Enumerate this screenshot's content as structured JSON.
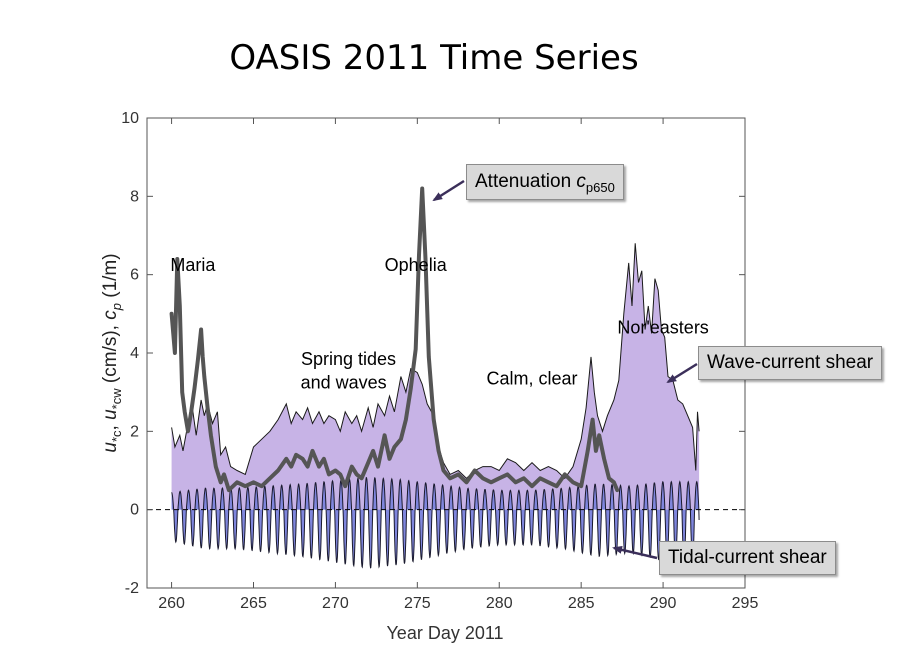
{
  "title": "OASIS 2011 Time Series",
  "colors": {
    "wave_fill": "#c7b3e6",
    "tidal_fill": "#7f86dd",
    "line": "#555555",
    "callout_bg": "#d9d9d9",
    "arrow": "#3b2f5a"
  },
  "callouts": {
    "attenuation": {
      "text": "Attenuation ",
      "sym": "c",
      "sub": "p650"
    },
    "wave_shear": "Wave-current shear",
    "tidal_shear": "Tidal-current shear"
  },
  "chart_data": {
    "type": "area",
    "xlabel": "Year Day 2011",
    "ylabel": "u*c, u*cw (cm/s), cp (1/m)",
    "xlim": [
      258.5,
      295
    ],
    "ylim": [
      -2,
      10
    ],
    "xticks": [
      260,
      265,
      270,
      275,
      280,
      285,
      290,
      295
    ],
    "yticks": [
      -2,
      0,
      2,
      4,
      6,
      8,
      10
    ],
    "zero_line": "dashed",
    "annotations": [
      {
        "text": "Maria",
        "x": 261.3,
        "y": 6.1
      },
      {
        "text": "Ophelia",
        "x": 274.9,
        "y": 6.1
      },
      {
        "text": "Spring tides",
        "x": 270.8,
        "y": 3.7
      },
      {
        "text": "and waves",
        "x": 270.5,
        "y": 3.1
      },
      {
        "text": "Calm, clear",
        "x": 282.0,
        "y": 3.2
      },
      {
        "text": "Nor'easters",
        "x": 290.0,
        "y": 4.5
      }
    ],
    "series": [
      {
        "name": "Wave-current shear",
        "kind": "filled-envelope",
        "x": [
          260.0,
          260.2,
          260.5,
          260.7,
          261.0,
          261.3,
          261.5,
          261.8,
          262.0,
          262.2,
          262.5,
          262.8,
          263.0,
          263.3,
          263.6,
          264.0,
          264.5,
          265.0,
          265.5,
          266.0,
          266.5,
          267.0,
          267.3,
          267.6,
          268.0,
          268.3,
          268.6,
          269.0,
          269.3,
          269.6,
          270.0,
          270.3,
          270.6,
          271.0,
          271.3,
          271.6,
          272.0,
          272.3,
          272.6,
          273.0,
          273.3,
          273.6,
          274.0,
          274.3,
          274.6,
          275.0,
          275.3,
          275.6,
          276.0,
          276.3,
          276.6,
          277.0,
          277.5,
          278.0,
          278.5,
          279.0,
          279.5,
          280.0,
          280.5,
          281.0,
          281.5,
          282.0,
          282.5,
          283.0,
          283.5,
          284.0,
          284.5,
          285.0,
          285.3,
          285.6,
          285.8,
          286.0,
          286.3,
          286.6,
          287.0,
          287.3,
          287.6,
          287.9,
          288.1,
          288.3,
          288.5,
          288.7,
          288.9,
          289.1,
          289.3,
          289.5,
          289.7,
          289.9,
          290.1,
          290.3,
          290.6,
          290.9,
          291.2,
          291.5,
          291.8,
          292.0,
          292.1,
          292.2
        ],
        "y": [
          2.1,
          1.6,
          1.9,
          1.5,
          2.2,
          2.5,
          1.9,
          2.8,
          2.4,
          2.7,
          2.2,
          2.5,
          1.4,
          1.6,
          1.1,
          1.0,
          0.9,
          1.6,
          1.8,
          2.0,
          2.3,
          2.7,
          2.2,
          2.5,
          2.3,
          2.6,
          2.2,
          2.5,
          2.2,
          2.4,
          2.3,
          2.0,
          2.5,
          2.2,
          2.4,
          2.0,
          2.6,
          2.1,
          2.7,
          2.4,
          2.9,
          2.5,
          3.4,
          3.0,
          3.6,
          3.5,
          3.2,
          2.7,
          2.4,
          1.6,
          1.2,
          0.9,
          1.0,
          0.8,
          1.0,
          1.1,
          1.1,
          1.0,
          1.3,
          1.2,
          1.0,
          1.2,
          1.0,
          1.1,
          1.0,
          0.8,
          1.1,
          1.8,
          2.6,
          3.9,
          3.0,
          2.4,
          2.0,
          2.4,
          2.8,
          3.3,
          5.0,
          6.3,
          5.2,
          6.8,
          5.8,
          6.1,
          4.6,
          5.2,
          4.5,
          5.9,
          5.6,
          4.6,
          4.4,
          3.4,
          3.3,
          2.8,
          2.7,
          2.4,
          2.1,
          1.0,
          2.5,
          2.0
        ]
      },
      {
        "name": "Tidal-current shear",
        "kind": "oscillating-fill",
        "x_start": 260.0,
        "x_end": 292.2,
        "period_days": 0.517,
        "peak_amplitude": [
          [
            260,
            0.8
          ],
          [
            262,
            1.0
          ],
          [
            264,
            1.0
          ],
          [
            266,
            1.1
          ],
          [
            268,
            1.2
          ],
          [
            270,
            1.35
          ],
          [
            272,
            1.5
          ],
          [
            274,
            1.4
          ],
          [
            276,
            1.2
          ],
          [
            278,
            1.0
          ],
          [
            280,
            0.9
          ],
          [
            282,
            0.9
          ],
          [
            284,
            1.0
          ],
          [
            286,
            1.2
          ],
          [
            288,
            1.1
          ],
          [
            290,
            1.3
          ],
          [
            292,
            1.3
          ]
        ]
      },
      {
        "name": "Attenuation cp650",
        "kind": "line",
        "x": [
          260.0,
          260.2,
          260.35,
          260.5,
          260.65,
          260.8,
          261.0,
          261.2,
          261.4,
          261.6,
          261.8,
          261.9,
          262.0,
          262.2,
          262.4,
          262.7,
          263.0,
          263.2,
          263.5,
          264.0,
          264.5,
          265.0,
          265.5,
          266.0,
          266.5,
          267.0,
          267.3,
          267.6,
          268.0,
          268.3,
          268.6,
          269.0,
          269.3,
          269.6,
          270.0,
          270.3,
          270.6,
          271.0,
          271.3,
          271.6,
          272.0,
          272.3,
          272.6,
          273.0,
          273.3,
          273.6,
          274.0,
          274.3,
          274.6,
          274.9,
          275.1,
          275.3,
          275.5,
          275.7,
          276.0,
          276.3,
          276.6,
          277.0,
          277.5,
          278.0,
          278.5,
          279.0,
          279.5,
          280.0,
          280.5,
          281.0,
          281.5,
          282.0,
          282.5,
          283.0,
          283.5,
          284.0,
          284.5,
          285.0,
          285.4,
          285.7,
          285.9,
          286.1,
          286.4,
          286.7,
          287.0,
          287.2
        ],
        "y": [
          5.0,
          4.0,
          6.4,
          5.2,
          3.0,
          2.5,
          2.0,
          2.5,
          3.1,
          3.8,
          4.6,
          3.9,
          3.4,
          2.6,
          1.9,
          1.1,
          0.7,
          0.9,
          0.5,
          0.7,
          0.6,
          0.7,
          0.6,
          0.8,
          1.0,
          1.3,
          1.1,
          1.4,
          1.3,
          1.1,
          1.5,
          1.1,
          1.3,
          0.9,
          1.0,
          0.9,
          0.6,
          1.1,
          0.9,
          0.8,
          1.2,
          1.5,
          1.1,
          1.9,
          1.3,
          1.6,
          1.8,
          2.3,
          3.1,
          4.1,
          6.5,
          8.2,
          6.4,
          3.9,
          2.3,
          1.5,
          1.0,
          0.8,
          0.9,
          0.7,
          1.0,
          0.8,
          0.7,
          0.8,
          0.9,
          0.7,
          0.8,
          0.6,
          0.8,
          0.7,
          0.6,
          0.9,
          0.7,
          0.6,
          1.5,
          2.3,
          1.5,
          1.9,
          1.3,
          0.8,
          0.7,
          0.5
        ]
      }
    ]
  }
}
